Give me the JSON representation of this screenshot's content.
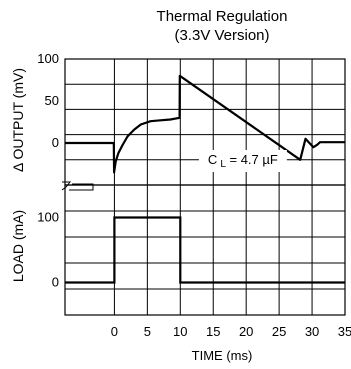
{
  "chart_data": {
    "type": "line",
    "title": "Thermal Regulation",
    "subtitle": "(3.3V Version)",
    "xlabel": "TIME (ms)",
    "x_ticks": [
      0,
      5,
      10,
      15,
      20,
      25,
      30,
      35
    ],
    "xlim": [
      -7.5,
      35
    ],
    "panels": [
      {
        "id": "output",
        "ylabel": "Δ OUTPUT (mV)",
        "ylim": [
          -50,
          100
        ],
        "y_ticks": [
          0,
          50,
          100
        ],
        "series": [
          {
            "x": [
              -7.5,
              -0.1,
              -0.05,
              0.2,
              0.6,
              1.2,
              2,
              3,
              4,
              5.5,
              7,
              8.5,
              9.9,
              9.92,
              28.2,
              29,
              29.6,
              30.2,
              30.8,
              31.2,
              35
            ],
            "y": [
              0,
              0,
              -35,
              -22,
              -12,
              -3,
              8,
              16,
              22,
              26,
              27,
              28,
              30,
              80,
              -20,
              5,
              0,
              -5,
              -2,
              1,
              1
            ]
          }
        ],
        "annotation": {
          "text": "C L = 4.7 µF",
          "main": "C",
          "sub": "L",
          "rest": " = 4.7 µF",
          "x": 19.5,
          "y": -25
        }
      },
      {
        "id": "load",
        "ylabel": "LOAD (mA)",
        "ylim": [
          -50,
          150
        ],
        "y_ticks": [
          0,
          100
        ],
        "series": [
          {
            "x": [
              -7.5,
              0,
              0,
              10,
              10,
              35
            ],
            "y": [
              0,
              0,
              100,
              100,
              0,
              0
            ]
          }
        ]
      }
    ],
    "grid": true
  }
}
